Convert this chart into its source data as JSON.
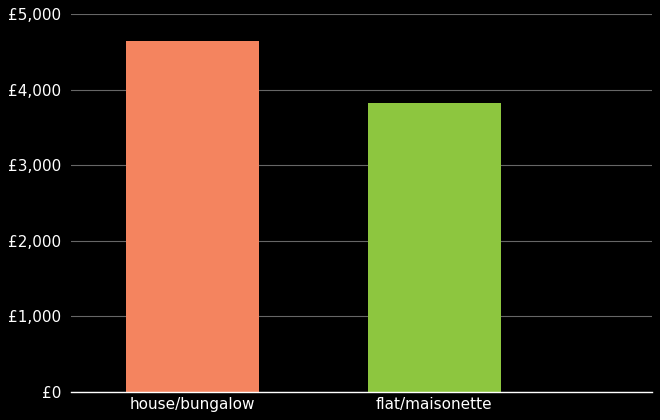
{
  "categories": [
    "house/bungalow",
    "flat/maisonette"
  ],
  "values": [
    4650,
    3820
  ],
  "bar_colors": [
    "#F4845F",
    "#8DC63F"
  ],
  "background_color": "#000000",
  "text_color": "#ffffff",
  "ylim": [
    0,
    5000
  ],
  "yticks": [
    0,
    1000,
    2000,
    3000,
    4000,
    5000
  ],
  "grid_color": "#666666",
  "bar_width": 0.55,
  "tick_fontsize": 11,
  "label_fontsize": 11,
  "x_positions": [
    1,
    2
  ],
  "xlim": [
    0.5,
    2.9
  ]
}
